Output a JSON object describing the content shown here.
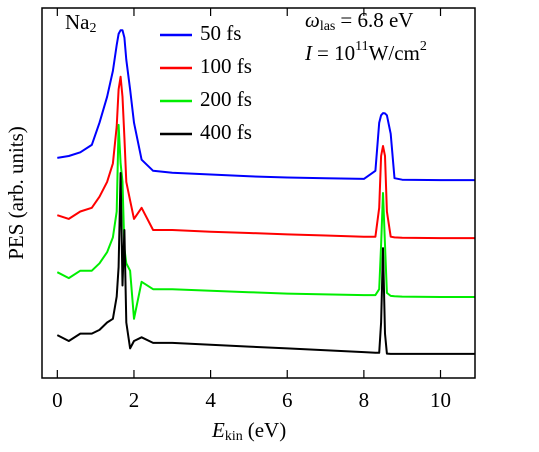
{
  "chart_data": {
    "type": "line",
    "xlabel": [
      "E",
      "kin",
      "(eV)"
    ],
    "ylabel": "PES (arb. units)",
    "annotations": [
      [
        "Na",
        "2"
      ],
      [
        "ω",
        "las",
        "= 6.8 eV"
      ],
      [
        "I",
        "= 10",
        "11",
        "W/cm",
        "2"
      ]
    ],
    "legend": "top",
    "xlim": [
      -0.4,
      10.9
    ],
    "xticks": [
      0,
      2,
      4,
      6,
      8,
      10
    ],
    "ylim": [
      0,
      10
    ],
    "x": [
      0,
      0.3,
      0.6,
      0.9,
      1.1,
      1.3,
      1.45,
      1.55,
      1.6,
      1.65,
      1.7,
      1.75,
      1.8,
      1.9,
      2.0,
      2.2,
      2.5,
      3,
      4,
      5,
      6,
      7,
      8,
      8.3,
      8.4,
      8.45,
      8.5,
      8.55,
      8.6,
      8.7,
      8.8,
      9,
      10,
      10.9
    ],
    "series": [
      {
        "name": "50 fs",
        "color": "#0000ff",
        "values": [
          5.95,
          6.0,
          6.1,
          6.3,
          6.9,
          7.6,
          8.3,
          9.0,
          9.3,
          9.4,
          9.4,
          9.2,
          8.6,
          7.8,
          6.9,
          5.9,
          5.6,
          5.55,
          5.5,
          5.45,
          5.42,
          5.4,
          5.38,
          5.6,
          6.9,
          7.1,
          7.16,
          7.15,
          7.1,
          6.6,
          5.4,
          5.36,
          5.35,
          5.35
        ]
      },
      {
        "name": "100 fs",
        "color": "#ff0000",
        "values": [
          4.4,
          4.3,
          4.5,
          4.6,
          4.9,
          5.3,
          5.8,
          6.8,
          7.8,
          8.14,
          7.6,
          6.5,
          5.3,
          4.8,
          4.3,
          4.6,
          4.0,
          4.0,
          3.95,
          3.92,
          3.88,
          3.85,
          3.82,
          3.82,
          4.6,
          6.0,
          6.27,
          6.0,
          4.5,
          3.82,
          3.8,
          3.79,
          3.78,
          3.78
        ]
      },
      {
        "name": "200 fs",
        "color": "#00ee00",
        "values": [
          2.86,
          2.7,
          2.9,
          2.9,
          3.1,
          3.4,
          3.8,
          4.5,
          6.84,
          5.8,
          5.3,
          3.5,
          3.1,
          2.9,
          1.6,
          2.6,
          2.4,
          2.4,
          2.36,
          2.32,
          2.28,
          2.26,
          2.24,
          2.24,
          2.4,
          3.6,
          5.0,
          3.6,
          2.3,
          2.22,
          2.21,
          2.2,
          2.19,
          2.19
        ]
      },
      {
        "name": "400 fs",
        "color": "#000000",
        "values": [
          1.16,
          1.0,
          1.2,
          1.2,
          1.3,
          1.5,
          1.6,
          2.2,
          3.0,
          5.54,
          2.5,
          4.0,
          1.5,
          0.8,
          1.0,
          1.1,
          0.95,
          0.95,
          0.9,
          0.85,
          0.8,
          0.75,
          0.7,
          0.68,
          0.68,
          1.5,
          3.51,
          1.2,
          0.66,
          0.65,
          0.65,
          0.65,
          0.65,
          0.65
        ]
      }
    ]
  }
}
